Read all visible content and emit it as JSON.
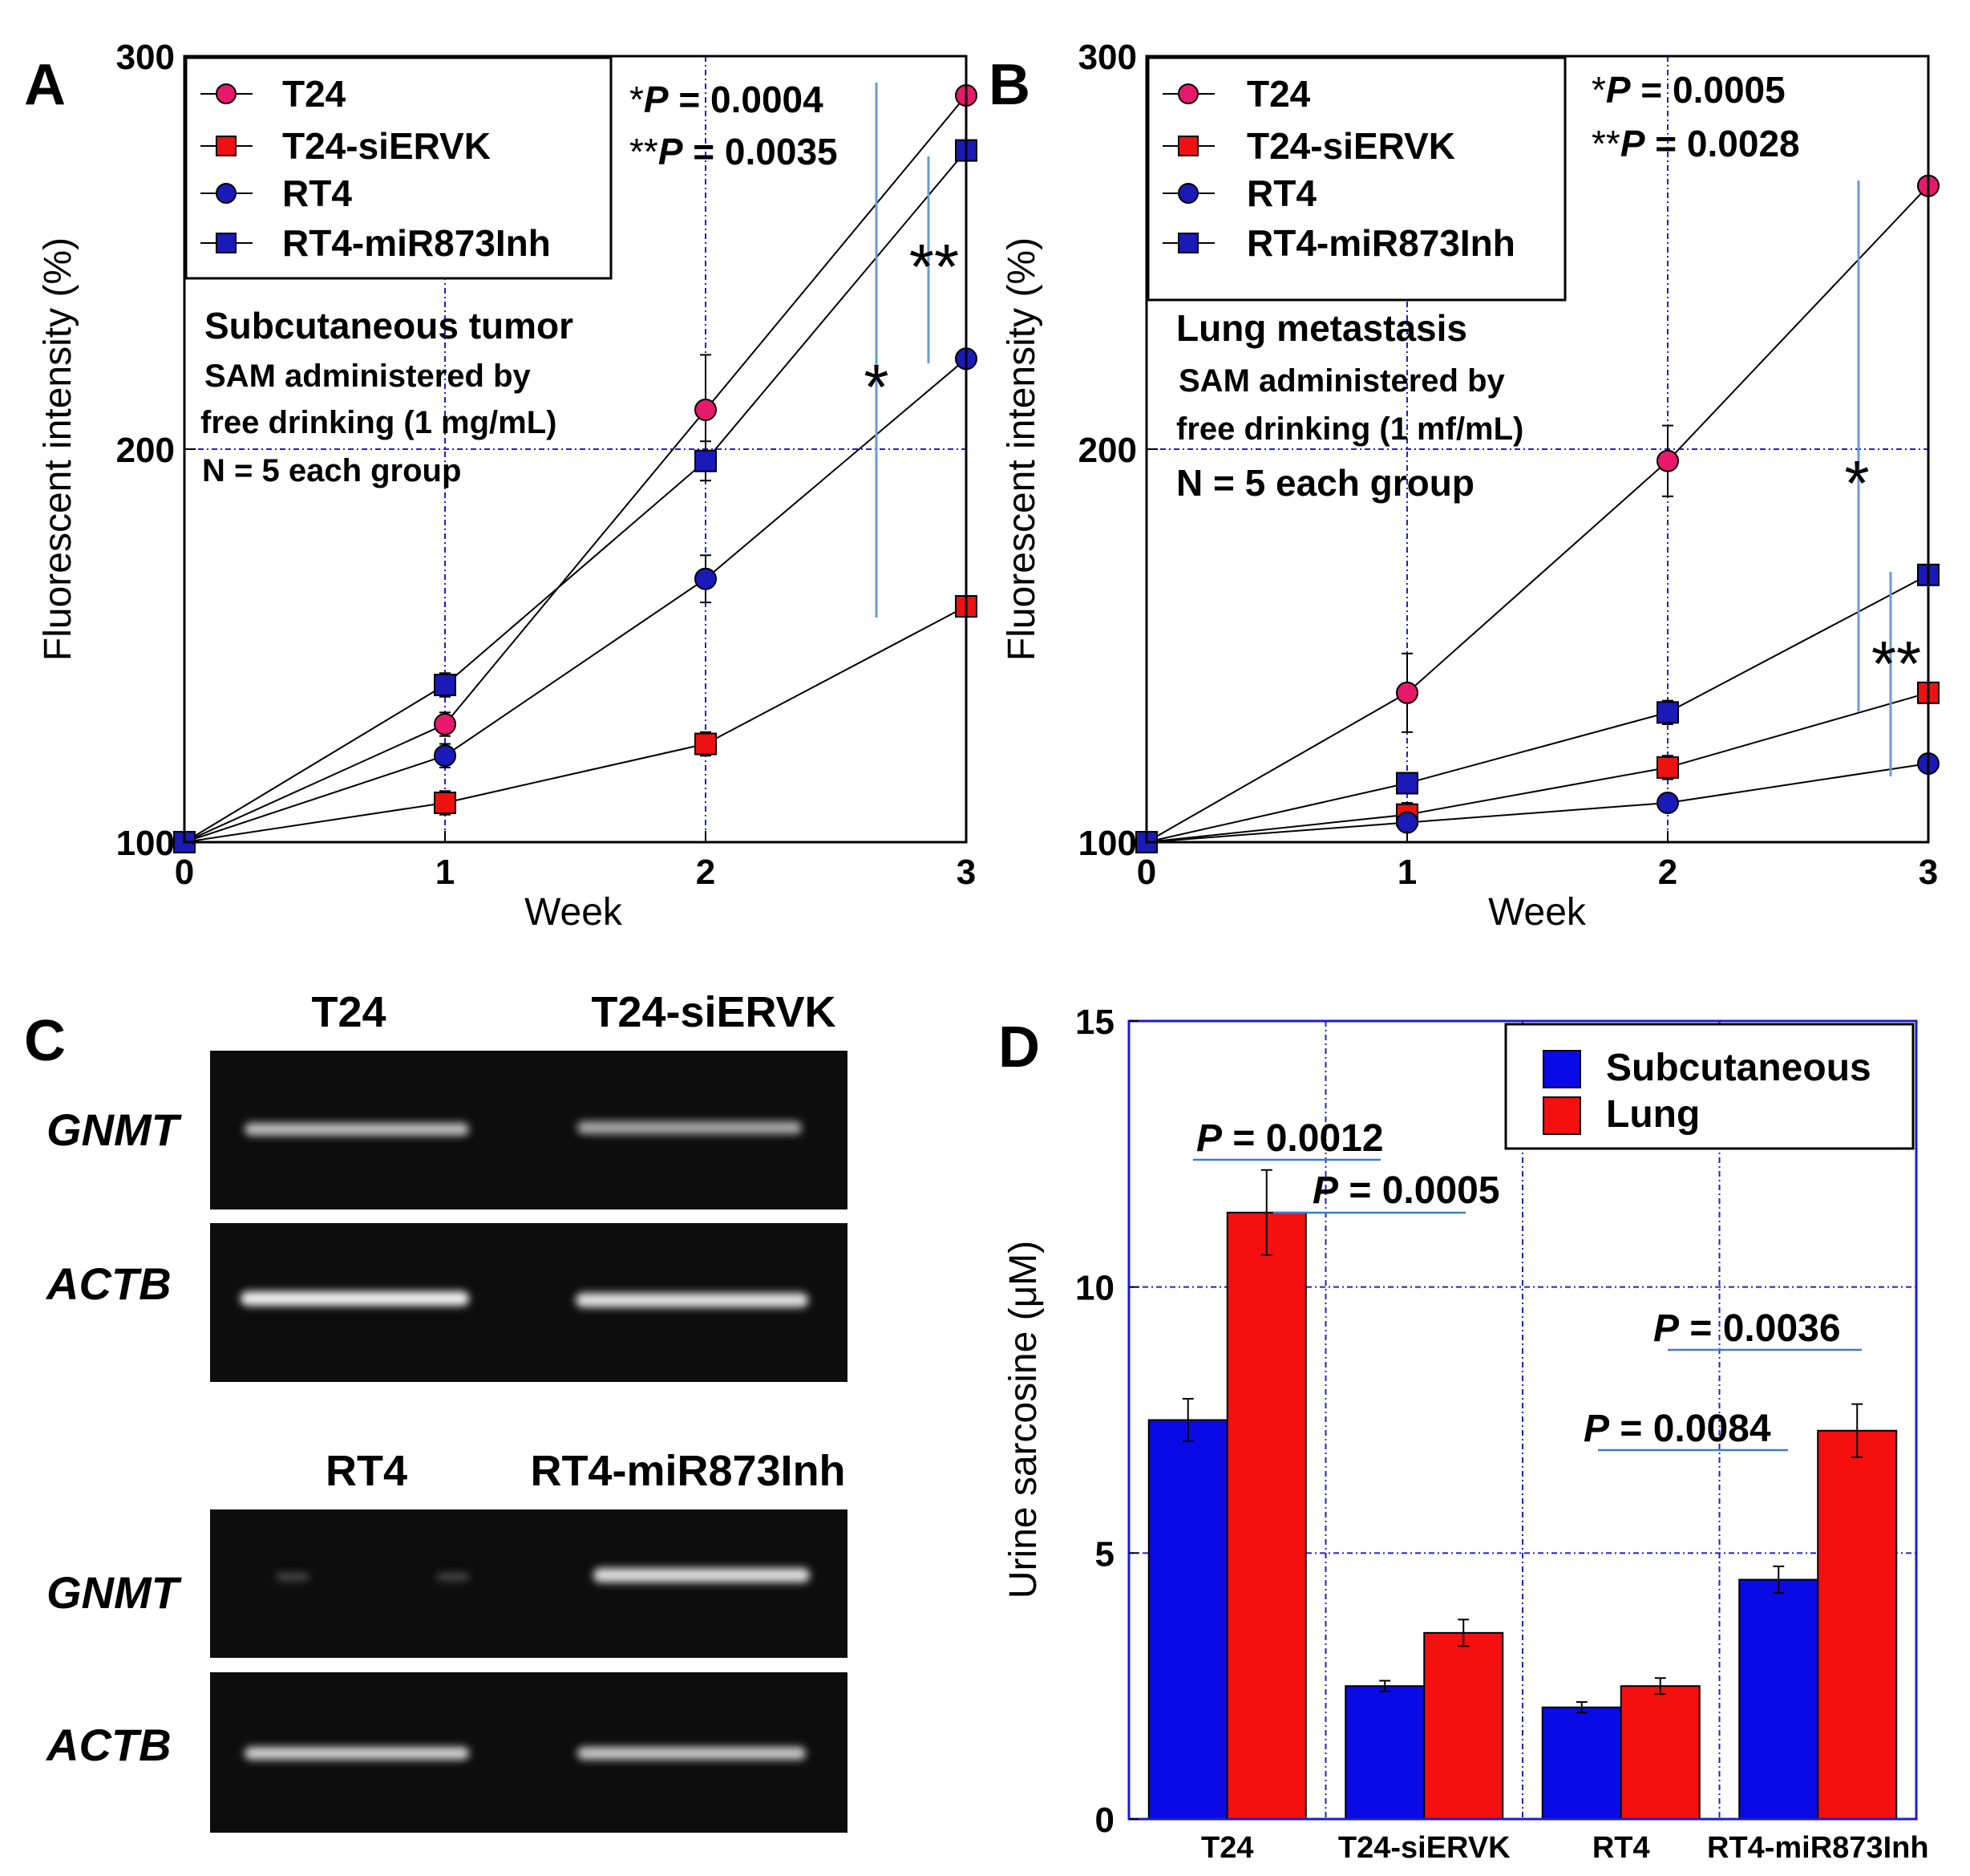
{
  "panels": {
    "a": "A",
    "b": "B",
    "c": "C",
    "d": "D"
  },
  "chart_data": [
    {
      "id": "A",
      "type": "line",
      "x": [
        0,
        1,
        2,
        3
      ],
      "xlabel": "Week",
      "ylabel": "Fluorescent intensity (%)",
      "ylim": [
        100,
        300
      ],
      "yticks": [
        100,
        200,
        300
      ],
      "xticks": [
        0,
        1,
        2,
        3
      ],
      "grid": true,
      "legend_position": "top-left",
      "series": [
        {
          "name": "T24",
          "marker": "circle",
          "color": "#e8196a",
          "values": [
            100,
            130,
            210,
            290
          ],
          "errors": [
            2,
            3,
            14,
            2
          ]
        },
        {
          "name": "T24-siERVK",
          "marker": "square",
          "color": "#ee1111",
          "values": [
            100,
            110,
            125,
            160
          ],
          "errors": [
            2,
            3,
            3,
            2
          ]
        },
        {
          "name": "RT4",
          "marker": "circle",
          "color": "#1a1ab8",
          "values": [
            100,
            122,
            167,
            223
          ],
          "errors": [
            2,
            3,
            6,
            2
          ]
        },
        {
          "name": "RT4-miR873Inh",
          "marker": "square",
          "color": "#1a1ab8",
          "values": [
            100,
            140,
            197,
            276
          ],
          "errors": [
            2,
            3,
            5,
            2
          ]
        }
      ],
      "annotations": {
        "p1_prefix": "*",
        "p1_label": "P",
        "p1_value": " = 0.0004",
        "p2_prefix": "**",
        "p2_label": "P",
        "p2_value": " = 0.0035",
        "star1": "*",
        "star2": "**",
        "title": "Subcutaneous  tumor",
        "line2": "SAM administered by",
        "line3": "free drinking (1 mg/mL)",
        "line4": "N = 5 each group"
      }
    },
    {
      "id": "B",
      "type": "line",
      "x": [
        0,
        1,
        2,
        3
      ],
      "xlabel": "Week",
      "ylabel": "Fluorescent intensity (%)",
      "ylim": [
        100,
        300
      ],
      "yticks": [
        100,
        200,
        300
      ],
      "xticks": [
        0,
        1,
        2,
        3
      ],
      "grid": true,
      "legend_position": "top-left",
      "series": [
        {
          "name": "T24",
          "marker": "circle",
          "color": "#e8196a",
          "values": [
            100,
            138,
            197,
            267
          ],
          "errors": [
            2,
            10,
            9,
            2
          ]
        },
        {
          "name": "T24-siERVK",
          "marker": "square",
          "color": "#ee1111",
          "values": [
            100,
            107,
            119,
            138
          ],
          "errors": [
            2,
            3,
            3,
            2
          ]
        },
        {
          "name": "RT4",
          "marker": "circle",
          "color": "#1a1ab8",
          "values": [
            100,
            105,
            110,
            120
          ],
          "errors": [
            2,
            2,
            2,
            2
          ]
        },
        {
          "name": "RT4-miR873Inh",
          "marker": "square",
          "color": "#1a1ab8",
          "values": [
            100,
            115,
            133,
            168
          ],
          "errors": [
            2,
            2,
            3,
            2
          ]
        }
      ],
      "annotations": {
        "p1_prefix": "*",
        "p1_label": "P",
        "p1_value": " = 0.0005",
        "p2_prefix": "**",
        "p2_label": "P",
        "p2_value": " = 0.0028",
        "star1": "*",
        "star2": "**",
        "title": "Lung metastasis",
        "line2": "SAM administered by",
        "line3": "free drinking (1 mf/mL)",
        "line4": "N = 5 each  group"
      }
    },
    {
      "id": "D",
      "type": "bar",
      "categories": [
        "T24",
        "T24-siERVK",
        "RT4",
        "RT4-miR873Inh"
      ],
      "ylabel": "Urine sarcosine (μM)",
      "ylim": [
        0,
        15
      ],
      "yticks": [
        0,
        5,
        10,
        15
      ],
      "grid": true,
      "legend_position": "top-right",
      "series": [
        {
          "name": "Subcutaneous",
          "color": "#0a0ae6",
          "values": [
            7.5,
            2.5,
            2.1,
            4.5
          ],
          "errors": [
            0.4,
            0.1,
            0.1,
            0.25
          ]
        },
        {
          "name": "Lung",
          "color": "#f50f0f",
          "values": [
            11.4,
            3.5,
            2.5,
            7.3
          ],
          "errors": [
            0.8,
            0.25,
            0.15,
            0.5
          ]
        }
      ],
      "annotations": [
        {
          "label": "P",
          "value": " = 0.0012"
        },
        {
          "label": "P",
          "value": " = 0.0005"
        },
        {
          "label": "P",
          "value": " = 0.0036"
        },
        {
          "label": "P",
          "value": " = 0.0084"
        }
      ]
    }
  ],
  "gels": {
    "top_lanes": [
      "T24",
      "T24-siERVK"
    ],
    "bottom_lanes": [
      "RT4",
      "RT4-miR873Inh"
    ],
    "genes": [
      "GNMT",
      "ACTB"
    ]
  }
}
